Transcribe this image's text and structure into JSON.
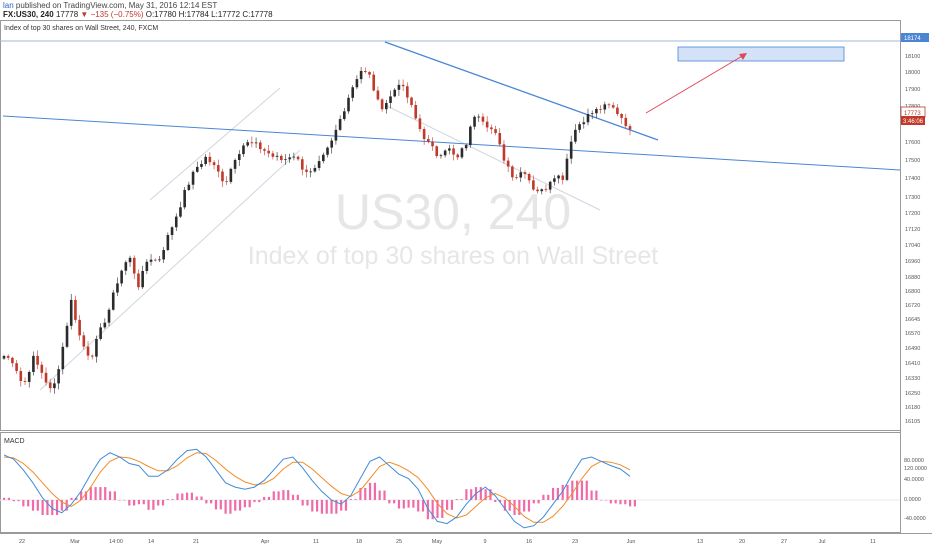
{
  "header": {
    "author": "lan",
    "published": "published on TradingView.com, May 31, 2016 12:14 EST",
    "symbol": "FX:US30, 240",
    "last": "17778",
    "change": "▼ −135 (−0.75%)",
    "ohlc_open": "O:17780",
    "ohlc_high": "H:17784",
    "ohlc_low": "L:17772",
    "ohlc_close": "C:17778"
  },
  "legend_title": "Index of top 30 shares on Wall Street, 240, FXCM",
  "watermark": {
    "symbol": "US30, 240",
    "description": "Index of top 30 shares on Wall Street"
  },
  "macd_label": "MACD",
  "price_badges": {
    "price": "17773",
    "countdown": "3:46:06",
    "top_marker": "18174"
  },
  "colors": {
    "up": "#2b2b2b",
    "down": "#c0392b",
    "trend": "#4a86d4",
    "macd": "#3f8bd8",
    "signal": "#f28c28",
    "hist": "#f06aa8",
    "arrow": "#e0455a",
    "target_box": "#c9dbf5"
  },
  "chart_data": [
    {
      "type": "candlestick",
      "x_tick_labels": [
        "22",
        "Mar",
        "14:00",
        "14",
        "21",
        "Apr",
        "11",
        "18",
        "25",
        "May",
        "9",
        "16",
        "23",
        "Jun",
        "13",
        "20",
        "27",
        "Jul",
        "11"
      ],
      "y_tick_labels": [
        "18100",
        "18000",
        "17900",
        "17800",
        "17700",
        "17600",
        "17500",
        "17400",
        "17300",
        "17200",
        "17120",
        "17040",
        "16960",
        "16880",
        "16800",
        "16720",
        "16645",
        "16570",
        "16490",
        "16410",
        "16330",
        "16250",
        "16180",
        "16105"
      ],
      "ylim": [
        16090,
        18290
      ],
      "close_path": [
        16480,
        16450,
        16300,
        16470,
        16380,
        16260,
        16500,
        16800,
        16560,
        16470,
        16620,
        16760,
        16950,
        17050,
        16880,
        17050,
        17020,
        17160,
        17300,
        17450,
        17560,
        17620,
        17550,
        17470,
        17620,
        17700,
        17690,
        17660,
        17620,
        17600,
        17640,
        17560,
        17520,
        17600,
        17700,
        17850,
        18000,
        18120,
        18080,
        17900,
        17950,
        18050,
        17950,
        17800,
        17700,
        17630,
        17680,
        17600,
        17700,
        17890,
        17820,
        17750,
        17600,
        17500,
        17550,
        17440,
        17420,
        17520,
        17500,
        17750,
        17830,
        17870,
        17900,
        17910,
        17860,
        17778
      ],
      "annotations": [
        "upper-trendline",
        "support-line",
        "channel-lines",
        "target-box",
        "projection-arrow"
      ]
    },
    {
      "type": "line",
      "title": "MACD",
      "y_tick_labels": [
        "120.0000",
        "80.0000",
        "40.0000",
        "0.0000",
        "-40.0000"
      ],
      "ylim": [
        -70,
        135
      ],
      "series": [
        {
          "values": [
            105,
            95,
            70,
            40,
            5,
            -20,
            -30,
            -10,
            20,
            60,
            95,
            110,
            100,
            85,
            80,
            55,
            55,
            70,
            95,
            115,
            118,
            100,
            70,
            40,
            30,
            25,
            30,
            45,
            70,
            95,
            100,
            75,
            45,
            20,
            0,
            -10,
            10,
            50,
            90,
            100,
            80,
            60,
            50,
            25,
            -20,
            -50,
            -55,
            -40,
            -10,
            15,
            30,
            10,
            -20,
            -50,
            -65,
            -60,
            -40,
            -10,
            20,
            60,
            95,
            100,
            90,
            80,
            72,
            55
          ]
        },
        {
          "values": [
            100,
            98,
            85,
            65,
            40,
            15,
            -5,
            -15,
            0,
            30,
            65,
            90,
            100,
            98,
            90,
            78,
            68,
            68,
            80,
            98,
            110,
            108,
            92,
            72,
            55,
            42,
            35,
            38,
            50,
            72,
            88,
            88,
            72,
            52,
            32,
            15,
            8,
            22,
            50,
            78,
            88,
            80,
            68,
            52,
            25,
            -8,
            -32,
            -42,
            -35,
            -15,
            5,
            15,
            5,
            -15,
            -38,
            -52,
            -52,
            -38,
            -15,
            15,
            50,
            78,
            90,
            88,
            82,
            70
          ]
        }
      ],
      "histogram": [
        5,
        -3,
        -15,
        -25,
        -35,
        -35,
        -25,
        5,
        20,
        30,
        30,
        20,
        0,
        -13,
        -10,
        -23,
        -13,
        2,
        15,
        17,
        8,
        -8,
        -22,
        -32,
        -25,
        -17,
        -5,
        7,
        20,
        23,
        12,
        -13,
        -27,
        -32,
        -32,
        -25,
        2,
        28,
        40,
        22,
        -8,
        -20,
        -18,
        -27,
        -45,
        -42,
        -23,
        2,
        25,
        30,
        25,
        -5,
        -25,
        -35,
        -27,
        -8,
        12,
        28,
        35,
        45,
        45,
        22,
        0,
        -8,
        -10,
        -15
      ]
    }
  ]
}
